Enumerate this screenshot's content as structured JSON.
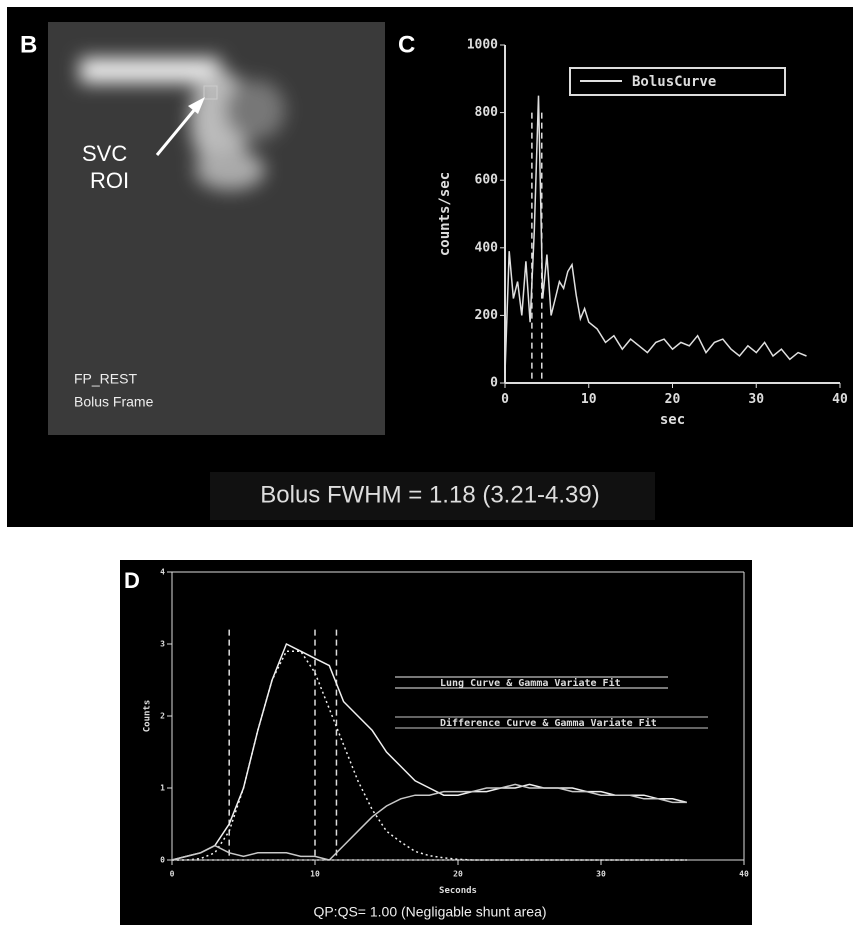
{
  "panels": {
    "b": {
      "label": "B",
      "annotation": [
        "SVC",
        "ROI"
      ],
      "caption": [
        "FP_REST",
        "Bolus Frame"
      ]
    },
    "c_label": "C",
    "bolus_fwhm": "Bolus FWHM = 1.18 (3.21-4.39)",
    "d_label": "D",
    "qp_qs": "QP:QS= 1.00  (Negligable shunt area)"
  },
  "chart_data": [
    {
      "type": "line",
      "xlabel": "sec",
      "ylabel": "counts/sec",
      "xlim": [
        0,
        40
      ],
      "xticks": [
        0,
        10,
        20,
        30,
        40
      ],
      "ylim": [
        0,
        1000
      ],
      "yticks": [
        0,
        200,
        400,
        600,
        800,
        1000
      ],
      "vlines": [
        3.21,
        4.39
      ],
      "x": [
        0,
        0.5,
        1,
        1.5,
        2,
        2.5,
        3,
        3.5,
        4,
        4.5,
        5,
        5.5,
        6,
        6.5,
        7,
        7.5,
        8,
        8.5,
        9,
        9.5,
        10,
        11,
        12,
        13,
        14,
        15,
        16,
        17,
        18,
        19,
        20,
        21,
        22,
        23,
        24,
        25,
        26,
        27,
        28,
        29,
        30,
        31,
        32,
        33,
        34,
        35,
        36
      ],
      "series": [
        {
          "name": "BolusCurve",
          "color": "#e0e0e0",
          "values": [
            30,
            390,
            250,
            300,
            200,
            360,
            180,
            450,
            850,
            250,
            380,
            200,
            250,
            300,
            280,
            330,
            350,
            260,
            190,
            220,
            180,
            160,
            120,
            140,
            100,
            130,
            110,
            90,
            120,
            130,
            100,
            120,
            110,
            140,
            90,
            120,
            130,
            100,
            80,
            110,
            90,
            120,
            80,
            100,
            70,
            90,
            80
          ]
        }
      ]
    },
    {
      "type": "line",
      "xlabel": "Seconds",
      "ylabel": "Counts",
      "xlim": [
        0,
        40
      ],
      "xticks": [
        0,
        10,
        20,
        30,
        40
      ],
      "ylim": [
        0,
        4
      ],
      "yticks": [
        0,
        1,
        2,
        3,
        4
      ],
      "vlines": [
        4,
        10,
        11.5
      ],
      "x": [
        0,
        1,
        2,
        3,
        4,
        5,
        6,
        7,
        8,
        9,
        10,
        11,
        12,
        13,
        14,
        15,
        16,
        17,
        18,
        19,
        20,
        21,
        22,
        23,
        24,
        25,
        26,
        27,
        28,
        29,
        30,
        31,
        32,
        33,
        34,
        35,
        36
      ],
      "series": [
        {
          "name": "Lung Curve & Gamma Variate Fit",
          "color": "#f0f0f0",
          "values": [
            0,
            0.05,
            0.1,
            0.2,
            0.5,
            1.0,
            1.8,
            2.5,
            3.0,
            2.9,
            2.8,
            2.7,
            2.2,
            2.0,
            1.8,
            1.5,
            1.3,
            1.1,
            1.0,
            0.9,
            0.9,
            0.95,
            0.95,
            1.0,
            1.0,
            1.05,
            1.0,
            1.0,
            1.0,
            0.95,
            0.95,
            0.9,
            0.9,
            0.9,
            0.85,
            0.85,
            0.8
          ],
          "fit": [
            0,
            0,
            0.02,
            0.1,
            0.4,
            1.0,
            1.8,
            2.5,
            2.9,
            2.9,
            2.6,
            2.1,
            1.6,
            1.1,
            0.7,
            0.4,
            0.25,
            0.12,
            0.06,
            0.03,
            0.01,
            0,
            0,
            0,
            0,
            0,
            0,
            0,
            0,
            0,
            0,
            0,
            0,
            0,
            0,
            0,
            0
          ]
        },
        {
          "name": "Difference Curve & Gamma Variate Fit",
          "color": "#c8c8c8",
          "values": [
            0,
            0.05,
            0.1,
            0.2,
            0.1,
            0.05,
            0.1,
            0.1,
            0.1,
            0.05,
            0.05,
            0,
            0.2,
            0.4,
            0.6,
            0.75,
            0.85,
            0.9,
            0.9,
            0.95,
            0.95,
            0.95,
            1.0,
            1.0,
            1.05,
            1.0,
            1.0,
            1.0,
            0.95,
            0.95,
            0.9,
            0.9,
            0.9,
            0.85,
            0.85,
            0.8,
            0.8
          ],
          "fit": [
            0,
            0,
            0,
            0,
            0,
            0,
            0,
            0,
            0,
            0,
            0,
            0,
            0,
            0,
            0,
            0,
            0,
            0,
            0,
            0,
            0,
            0,
            0,
            0,
            0,
            0,
            0,
            0,
            0,
            0,
            0,
            0,
            0,
            0,
            0,
            0,
            0
          ]
        }
      ]
    }
  ]
}
